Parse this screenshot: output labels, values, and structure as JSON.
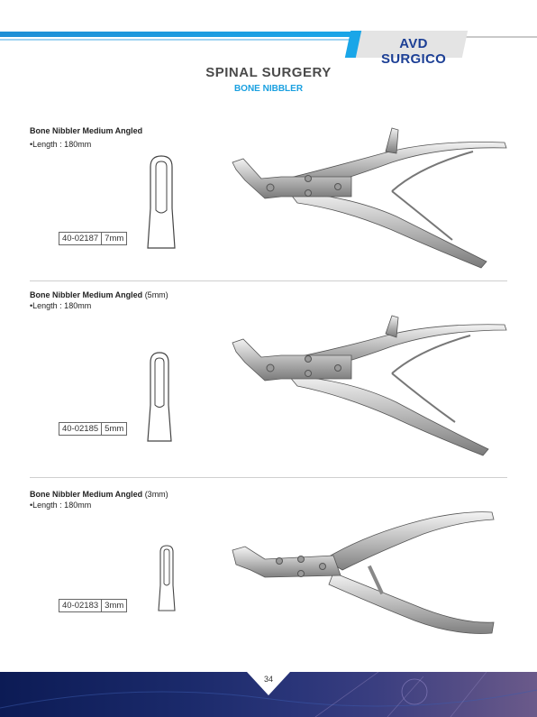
{
  "header": {
    "brand": "AVD SURGICO"
  },
  "page": {
    "title": "SPINAL SURGERY",
    "subtitle": "BONE NIBBLER",
    "number": "34"
  },
  "products": [
    {
      "name": "Bone Nibbler Medium Angled",
      "name_suffix": "",
      "length": "Length : 180mm",
      "code": "40-02187",
      "size": "7mm"
    },
    {
      "name": "Bone Nibbler Medium Angled",
      "name_suffix": "(5mm)",
      "length": "Length : 180mm",
      "code": "40-02185",
      "size": "5mm"
    },
    {
      "name": "Bone Nibbler Medium Angled",
      "name_suffix": "(3mm)",
      "length": "Length : 180mm",
      "code": "40-02183",
      "size": "3mm"
    }
  ],
  "colors": {
    "brand_blue": "#1c3f95",
    "accent_cyan": "#1aa6e8",
    "footer_navy": "#0c1b55"
  },
  "icons": [
    "tip-profile-icon",
    "bone-nibbler-instrument-image"
  ]
}
